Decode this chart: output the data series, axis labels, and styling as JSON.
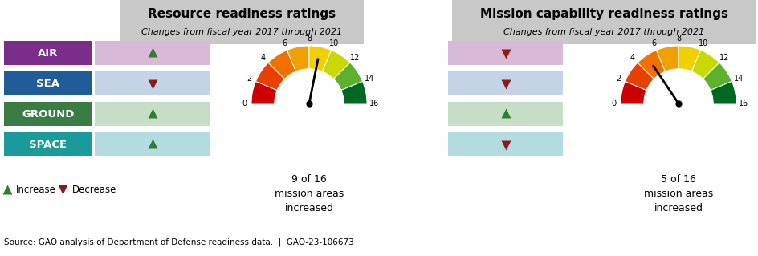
{
  "title1": "Resource readiness ratings",
  "subtitle1": "Changes from fiscal year 2017 through 2021",
  "title2": "Mission capability readiness ratings",
  "subtitle2": "Changes from fiscal year 2017 through 2021",
  "domains": [
    "AIR",
    "SEA",
    "GROUND",
    "SPACE"
  ],
  "domain_colors": [
    "#7B2D8B",
    "#1F5C99",
    "#3A7D44",
    "#1A9A9A"
  ],
  "resource_changes": [
    "increase",
    "decrease",
    "increase",
    "increase"
  ],
  "mission_changes": [
    "decrease",
    "decrease",
    "increase",
    "decrease"
  ],
  "resource_bar_colors": [
    "#D8BAD8",
    "#C5D3E8",
    "#C5DEC5",
    "#B2DCE0"
  ],
  "mission_bar_colors": [
    "#D8BAD8",
    "#C5D3E8",
    "#C5DEC5",
    "#B2DCE0"
  ],
  "increase_color": "#2E7D32",
  "decrease_color": "#8B1A1A",
  "gauge1_value": 9,
  "gauge1_max": 16,
  "gauge1_text": "9 of 16\nmission areas\nincreased",
  "gauge2_value": 5,
  "gauge2_max": 16,
  "gauge2_text": "5 of 16\nmission areas\nincreased",
  "source_text": "Source: GAO analysis of Department of Defense readiness data.  |  GAO-23-106673",
  "header_bg_color": "#C8C8C8",
  "bg_color": "#FFFFFF",
  "gauge_colors": [
    "#CC0000",
    "#E84000",
    "#F07000",
    "#F0A000",
    "#F0D000",
    "#C8D800",
    "#60B030",
    "#006820"
  ]
}
